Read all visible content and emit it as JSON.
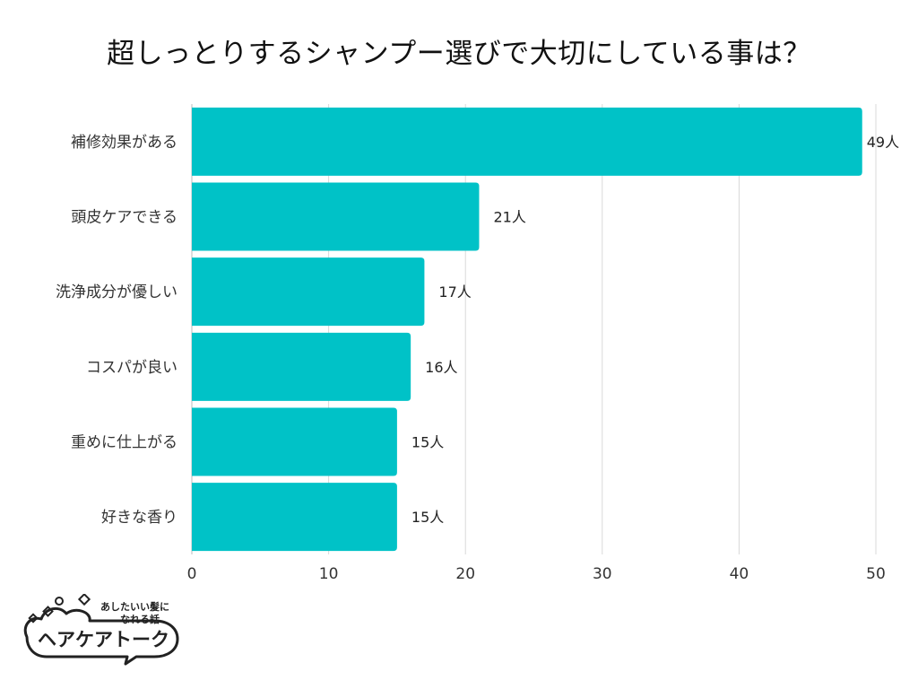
{
  "chart_data": {
    "type": "bar",
    "orientation": "horizontal",
    "title": "超しっとりするシャンプー選びで大切にしている事は？",
    "categories": [
      "補修効果がある",
      "頭皮ケアできる",
      "洗浄成分が優しい",
      "コスパが良い",
      "重めに仕上がる",
      "好きな香り"
    ],
    "values": [
      49,
      21,
      17,
      16,
      15,
      15
    ],
    "data_labels": [
      "49人",
      "21人",
      "17人",
      "16人",
      "15人",
      "15人"
    ],
    "xlim": [
      0,
      50
    ],
    "xticks": [
      "0",
      "10",
      "20",
      "30",
      "40",
      "50"
    ],
    "xtick_values": [
      0,
      10,
      20,
      30,
      40,
      50
    ],
    "grid": "vertical",
    "bar_color": "#00c2c7",
    "grid_color": "#d9d9d9"
  },
  "logo": {
    "tagline_line1": "あしたいい髪に",
    "tagline_line2": "なれる話",
    "name": "ヘアケアトーク"
  }
}
